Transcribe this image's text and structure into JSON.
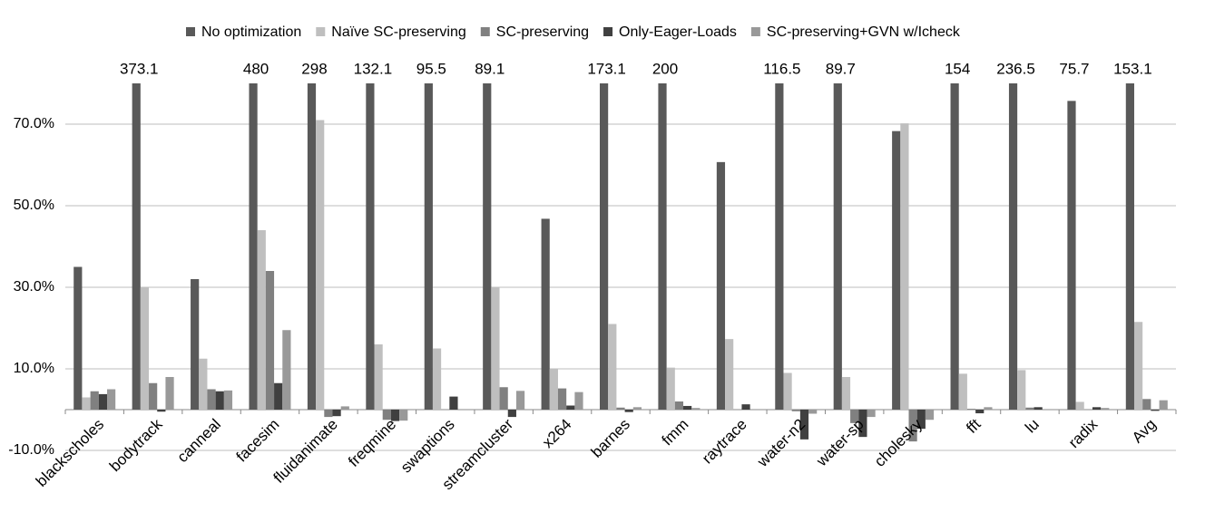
{
  "chart_data": {
    "type": "bar",
    "categories": [
      "blackscholes",
      "bodytrack",
      "canneal",
      "facesim",
      "fluidanimate",
      "freqmine",
      "swaptions",
      "streamcluster",
      "x264",
      "barnes",
      "fmm",
      "raytrace",
      "water-n2",
      "water-sp",
      "cholesky",
      "fft",
      "lu",
      "radix",
      "Avg"
    ],
    "series": [
      {
        "name": "No optimization",
        "color": "#595959",
        "values": [
          35,
          373.1,
          32,
          480,
          298,
          132.1,
          95.5,
          89.1,
          46.8,
          173.1,
          200,
          60.7,
          116.5,
          89.7,
          68.3,
          154,
          236.5,
          75.7,
          153.1
        ],
        "value_labels": [
          null,
          "373.1",
          null,
          "480",
          "298",
          "132.1",
          "95.5",
          "89.1",
          null,
          "173.1",
          "200",
          null,
          "116.5",
          "89.7",
          null,
          "154",
          "236.5",
          "75.7",
          "153.1"
        ]
      },
      {
        "name": "Naïve SC-preserving",
        "color": "#bfbfbf",
        "values": [
          3,
          30,
          12.5,
          44,
          71,
          16,
          15,
          30,
          10,
          21,
          10.3,
          17.3,
          9,
          8,
          70.2,
          8.8,
          9.7,
          1.9,
          21.5
        ]
      },
      {
        "name": "SC-preserving",
        "color": "#808080",
        "values": [
          4.5,
          6.5,
          5,
          34,
          -1.8,
          -2.5,
          0,
          5.5,
          5.2,
          0.5,
          2,
          0,
          -0.4,
          -3.3,
          -7.8,
          0.2,
          0.5,
          0,
          2.6
        ]
      },
      {
        "name": "Only-Eager-Loads",
        "color": "#404040",
        "values": [
          3.8,
          -0.5,
          4.5,
          6.5,
          -1.6,
          -2.8,
          3.2,
          -1.8,
          1,
          -0.6,
          0.9,
          1.3,
          -7.3,
          -6.7,
          -4.7,
          -0.9,
          0.6,
          0.6,
          -0.3
        ]
      },
      {
        "name": "SC-preserving+GVN w/Icheck",
        "color": "#999999",
        "values": [
          5,
          8,
          4.7,
          19.5,
          0.8,
          -2.7,
          0,
          4.6,
          4.3,
          0.6,
          0.4,
          0,
          -1,
          -1.8,
          -2.5,
          0.6,
          0,
          0.4,
          2.3
        ]
      }
    ],
    "ylim": [
      -10,
      80
    ],
    "yticks": [
      {
        "value": -10,
        "label": "-10.0%"
      },
      {
        "value": 10,
        "label": "10.0%"
      },
      {
        "value": 30,
        "label": "30.0%"
      },
      {
        "value": 50,
        "label": "50.0%"
      },
      {
        "value": 70,
        "label": "70.0%"
      }
    ],
    "grid": true
  }
}
